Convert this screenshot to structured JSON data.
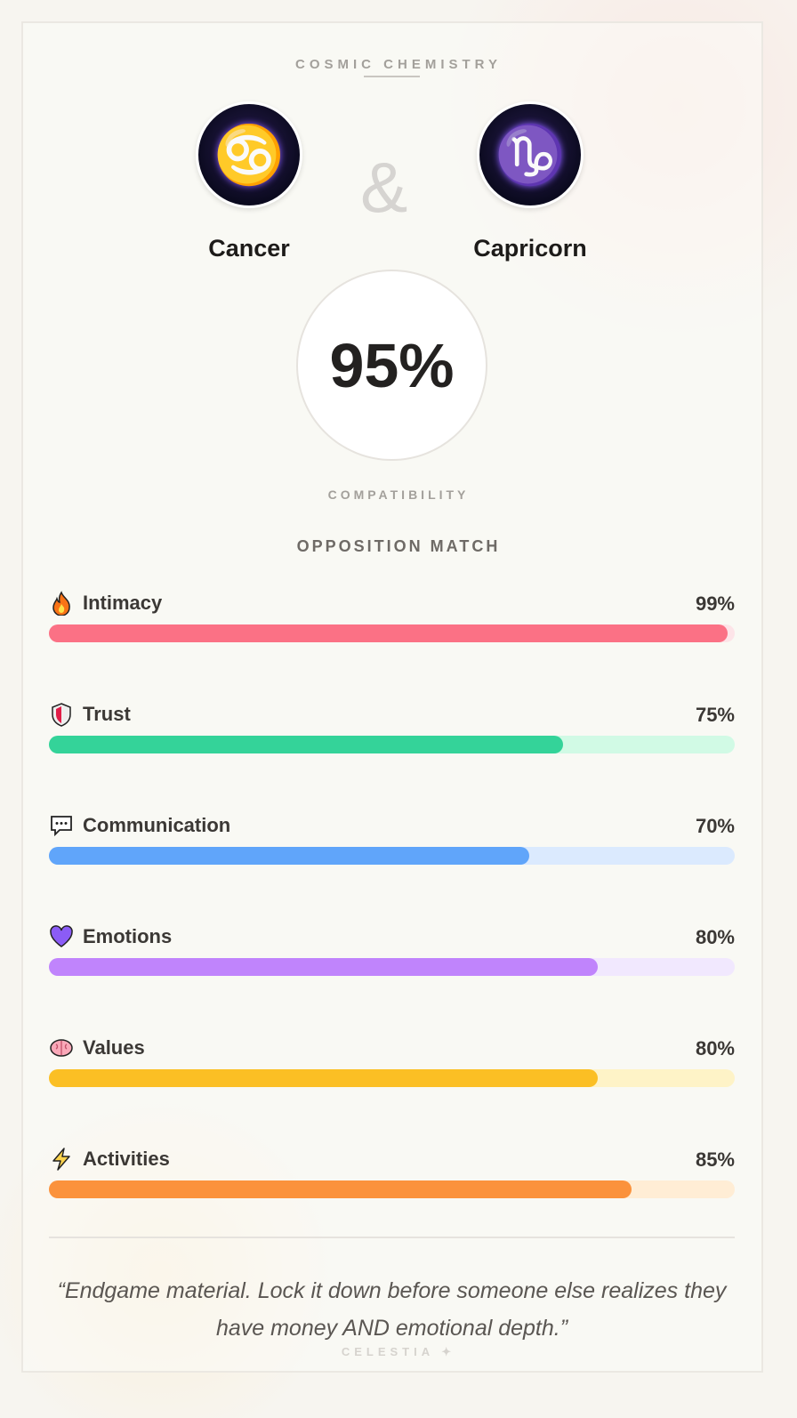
{
  "header": {
    "kicker": "COSMIC CHEMISTRY",
    "ampersand": "&"
  },
  "signs": [
    {
      "name": "Cancer",
      "glyph": "♋"
    },
    {
      "name": "Capricorn",
      "glyph": "♑"
    }
  ],
  "score": {
    "value": "95%",
    "label": "COMPATIBILITY",
    "percent": 95
  },
  "match_type": "OPPOSITION MATCH",
  "categories": [
    {
      "label": "Intimacy",
      "value": "99%",
      "percent": 99,
      "icon": "fire-icon",
      "color": "#fb7185",
      "track": "#fde4e8"
    },
    {
      "label": "Trust",
      "value": "75%",
      "percent": 75,
      "icon": "shield-icon",
      "color": "#34d399",
      "track": "#d1fae5"
    },
    {
      "label": "Communication",
      "value": "70%",
      "percent": 70,
      "icon": "speech-bubble-icon",
      "color": "#60a5fa",
      "track": "#dbeafe"
    },
    {
      "label": "Emotions",
      "value": "80%",
      "percent": 80,
      "icon": "purple-heart-icon",
      "color": "#c084fc",
      "track": "#f1e8fe"
    },
    {
      "label": "Values",
      "value": "80%",
      "percent": 80,
      "icon": "brain-icon",
      "color": "#fbbf24",
      "track": "#fef3c7"
    },
    {
      "label": "Activities",
      "value": "85%",
      "percent": 85,
      "icon": "lightning-icon",
      "color": "#fb923c",
      "track": "#ffedd5"
    }
  ],
  "quote": "“Endgame material. Lock it down before someone else realizes they have money AND emotional depth.”",
  "brand": "CELESTIA ✦"
}
